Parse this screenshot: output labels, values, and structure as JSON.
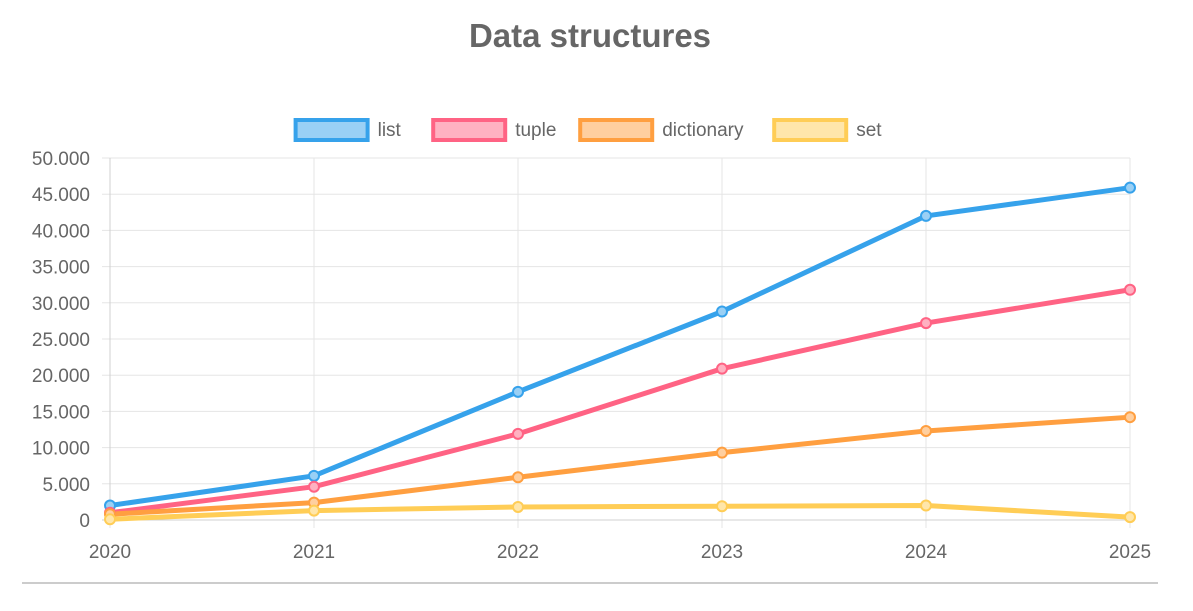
{
  "chart_data": {
    "type": "line",
    "title": "Data structures",
    "xlabel": "",
    "ylabel": "",
    "x": [
      "2020",
      "2021",
      "2022",
      "2023",
      "2024",
      "2025"
    ],
    "ylim": [
      0,
      50000
    ],
    "y_ticks": [
      "0",
      "5.000",
      "10.000",
      "15.000",
      "20.000",
      "25.000",
      "30.000",
      "35.000",
      "40.000",
      "45.000",
      "50.000"
    ],
    "grid": true,
    "legend_position": "top",
    "series": [
      {
        "name": "list",
        "color": "#36a2eb",
        "fill": "#9ad0f5",
        "values": [
          2000,
          6100,
          17700,
          28800,
          42000,
          45900
        ]
      },
      {
        "name": "tuple",
        "color": "#ff6384",
        "fill": "#ffb1c1",
        "values": [
          1000,
          4600,
          11900,
          20900,
          27200,
          31800
        ]
      },
      {
        "name": "dictionary",
        "color": "#ff9f40",
        "fill": "#ffcf9f",
        "values": [
          800,
          2400,
          5900,
          9300,
          12300,
          14200
        ]
      },
      {
        "name": "set",
        "color": "#ffcd56",
        "fill": "#ffe6aa",
        "values": [
          100,
          1300,
          1800,
          1900,
          2000,
          400
        ]
      }
    ]
  }
}
